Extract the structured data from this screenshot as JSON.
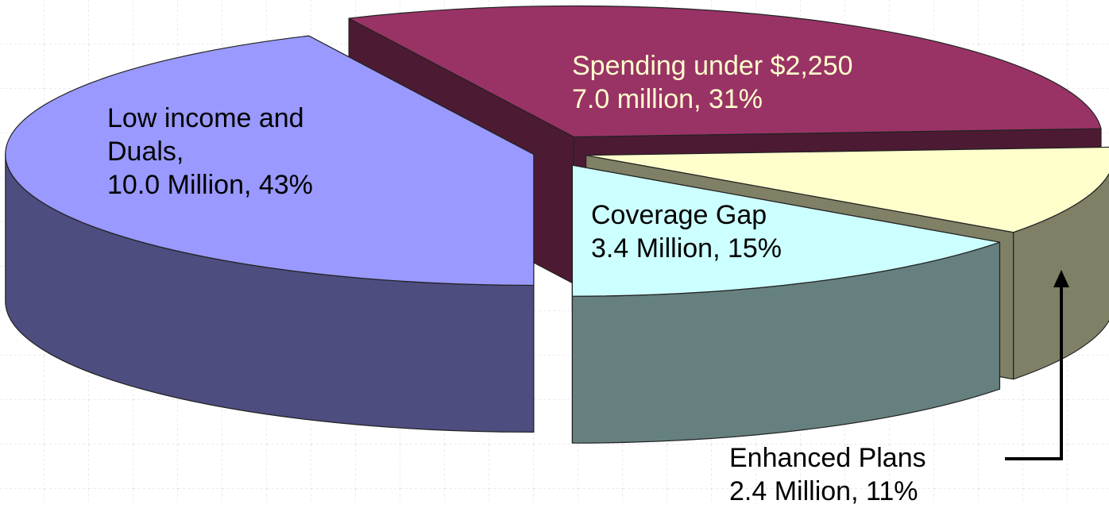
{
  "chart_data": {
    "type": "pie3d",
    "categories": [
      "Spending under $2,250",
      "Enhanced Plans",
      "Coverage Gap",
      "Low income and Duals,"
    ],
    "values": [
      31,
      11,
      15,
      43
    ],
    "value_labels": [
      "7.0 million, 31%",
      "2.4 Million, 11%",
      "3.4 Million, 15%",
      "10.0 Million, 43%"
    ],
    "colors": [
      "#993366",
      "#ffffcc",
      "#ccffff",
      "#9999ff"
    ],
    "side_colors": [
      "#4d1a33",
      "#808066",
      "#668080",
      "#4d4d80"
    ]
  }
}
